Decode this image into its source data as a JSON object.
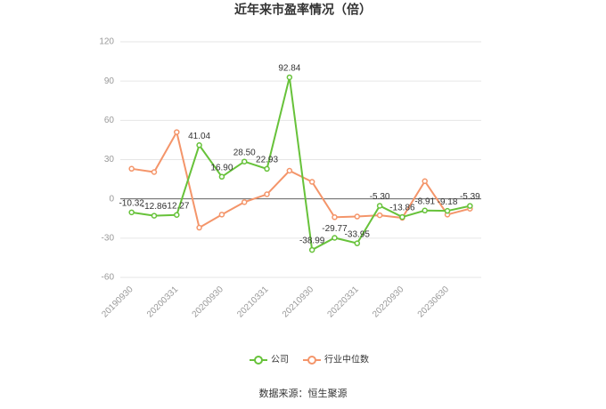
{
  "chart_data": {
    "type": "line",
    "title": "近年来市盈率情况（倍）",
    "categories": [
      "20190930",
      null,
      "20200331",
      null,
      "20200930",
      null,
      "20210331",
      null,
      "20210930",
      null,
      "20220331",
      null,
      "20220930",
      null,
      "20230630",
      null
    ],
    "series": [
      {
        "name": "公司",
        "color": "#67c23a",
        "values": [
          -10.32,
          -12.86,
          -12.27,
          41.04,
          16.9,
          28.5,
          22.93,
          92.84,
          -38.99,
          -29.77,
          -33.95,
          -5.3,
          -13.86,
          -8.91,
          -9.18,
          -5.39
        ],
        "value_labels": [
          "-10.32",
          "-12.86",
          "-12.27",
          "41.04",
          "16.90",
          "28.50",
          "22.93",
          "92.84",
          "-38.99",
          "-29.77",
          "-33.95",
          "-5.30",
          "-13.86",
          "-8.91",
          "-9.18",
          "-5.39"
        ]
      },
      {
        "name": "行业中位数",
        "color": "#f4956a",
        "values": [
          23,
          20.5,
          51,
          -22,
          -12,
          -2.5,
          3.5,
          21.5,
          13,
          -14,
          -13.5,
          -12.5,
          -14.5,
          13.5,
          -12,
          -7.5
        ]
      }
    ],
    "ylim": [
      -60,
      120
    ],
    "yticks": [
      -60,
      -30,
      0,
      30,
      60,
      90,
      120
    ],
    "grid": true,
    "source": "数据来源：恒生聚源"
  }
}
